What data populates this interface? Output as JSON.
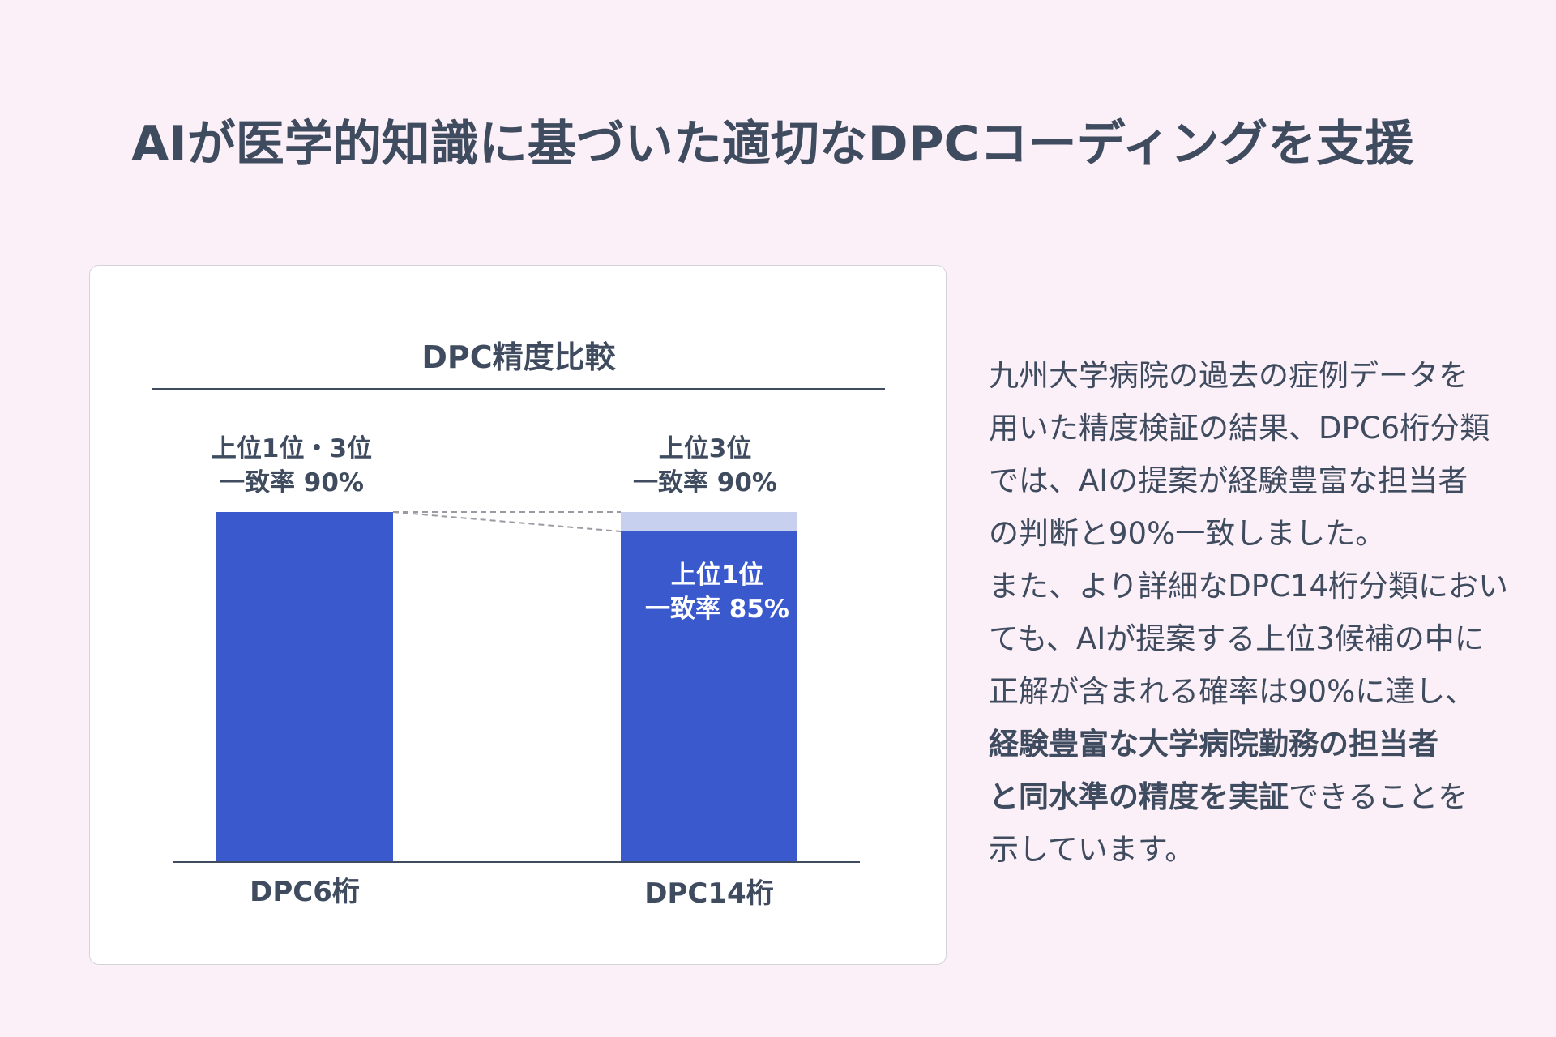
{
  "page": {
    "title": "AIが医学的知識に基づいた適切なDPCコーディングを支援"
  },
  "chart_data": {
    "type": "bar",
    "title": "DPC精度比較",
    "categories": [
      "DPC6桁",
      "DPC14桁"
    ],
    "ylim": [
      0,
      100
    ],
    "grid": false,
    "bar_color": "#3959cc",
    "top3_color": "#c8d0ef",
    "bars": [
      {
        "category": "DPC6桁",
        "value": 90,
        "label_line1": "上位1位・3位",
        "label_line2": "一致率 90%"
      },
      {
        "category": "DPC14桁",
        "top1_value": 85,
        "top3_value": 90,
        "top3_label_line1": "上位3位",
        "top3_label_line2": "一致率 90%",
        "top1_label_line1": "上位1位",
        "top1_label_line2": "一致率 85%"
      }
    ]
  },
  "description": {
    "lines": [
      {
        "text": "九州大学病院の過去の症例データを",
        "bold": false
      },
      {
        "text": "用いた精度検証の結果、DPC6桁分類",
        "bold": false
      },
      {
        "text": "では、AIの提案が経験豊富な担当者",
        "bold": false
      },
      {
        "text": "の判断と90%一致しました。",
        "bold": false
      },
      {
        "text": "また、より詳細なDPC14桁分類におい",
        "bold": false
      },
      {
        "text": "ても、AIが提案する上位3候補の中に",
        "bold": false
      },
      {
        "text": "正解が含まれる確率は90%に達し、",
        "bold": false
      }
    ],
    "line8_bold": "経験豊富な大学病院勤務の担当者",
    "line9_bold": "と同水準の精度を実証",
    "line9_rest": "できることを",
    "line10": "示しています。"
  }
}
